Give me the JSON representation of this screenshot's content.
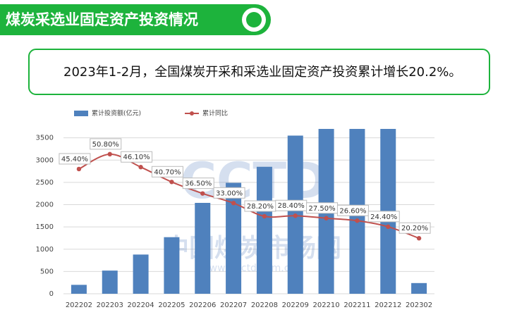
{
  "header": {
    "title": "煤炭采选业固定资产投资情况"
  },
  "summary": {
    "text": "2023年1-2月，全国煤炭开采和采选业固定资产投资累计增长20.2%。"
  },
  "watermark": {
    "logo": "CCTD",
    "mark": "®",
    "name": "中国煤炭市场网",
    "url": "www.cctd.com.cn"
  },
  "chart_data": {
    "type": "bar",
    "categories": [
      "202202",
      "202203",
      "202204",
      "202205",
      "202206",
      "202207",
      "202208",
      "202209",
      "202210",
      "202211",
      "202212",
      "202302"
    ],
    "series": [
      {
        "name": "累计投资额(亿元)",
        "color": "#4f81bd",
        "values": [
          200,
          520,
          880,
          1270,
          2040,
          2490,
          2850,
          3550,
          3700,
          3700,
          3700,
          240
        ]
      },
      {
        "name": "累计同比",
        "type": "line",
        "axis": "y2",
        "color": "#c0504d",
        "values": [
          45.4,
          50.8,
          46.1,
          40.7,
          36.5,
          33.0,
          28.2,
          28.4,
          27.5,
          26.6,
          24.4,
          20.2
        ],
        "value_labels": [
          "45.40%",
          "50.80%",
          "46.10%",
          "40.70%",
          "36.50%",
          "33.00%",
          "28.20%",
          "28.40%",
          "27.50%",
          "26.60%",
          "24.40%",
          "20.20%"
        ]
      }
    ],
    "ylim": [
      0,
      3700
    ],
    "yticks": [
      0,
      500,
      1000,
      1500,
      2000,
      2500,
      3000,
      3500
    ],
    "y2lim": [
      0,
      60
    ],
    "grid": true
  }
}
